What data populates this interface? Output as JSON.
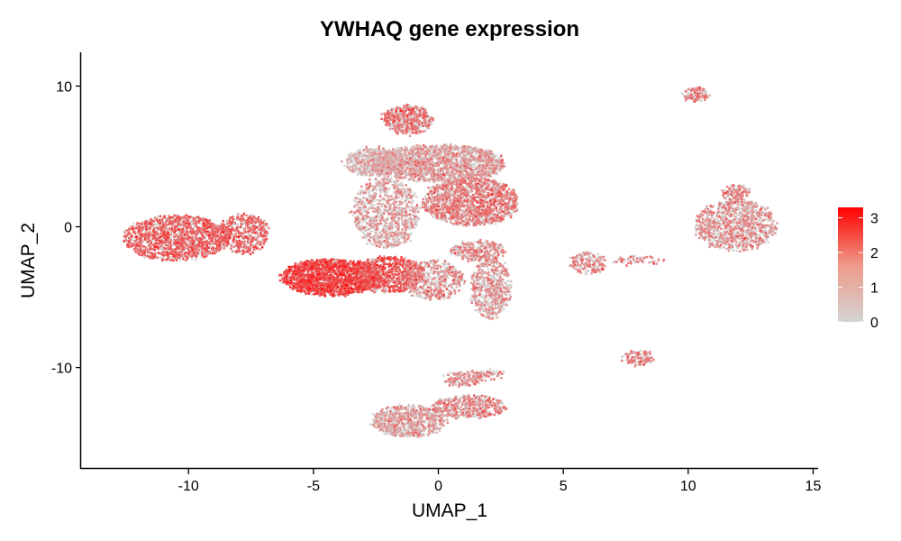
{
  "chart_data": {
    "type": "scatter",
    "title": "YWHAQ gene expression",
    "xlabel": "UMAP_1",
    "ylabel": "UMAP_2",
    "xlim": [
      -14.3,
      15.2
    ],
    "ylim": [
      -17.2,
      12.4
    ],
    "x_ticks": [
      -10,
      -5,
      0,
      5,
      10,
      15
    ],
    "y_ticks": [
      -10,
      0,
      10
    ],
    "x_tick_labels": [
      "-10",
      "-5",
      "0",
      "5",
      "10",
      "15"
    ],
    "y_tick_labels": [
      "-10",
      "0",
      "10"
    ],
    "grid": false,
    "legend_position": "right",
    "color_scale": {
      "min": 0,
      "max": 3.3,
      "low_color": "#d3d3d3",
      "high_color": "#ff0000",
      "ticks": [
        0,
        1,
        2,
        3
      ],
      "tick_labels": [
        "0",
        "1",
        "2",
        "3"
      ]
    },
    "clusters": [
      {
        "cx": -10.5,
        "cy": -0.8,
        "rx": 2.1,
        "ry": 1.6,
        "n": 1400,
        "mean_expr": 1.8
      },
      {
        "cx": -7.8,
        "cy": -0.5,
        "rx": 1.0,
        "ry": 1.4,
        "n": 500,
        "mean_expr": 1.7
      },
      {
        "cx": -4.3,
        "cy": -3.6,
        "rx": 2.0,
        "ry": 1.3,
        "n": 1700,
        "mean_expr": 2.3
      },
      {
        "cx": -2.0,
        "cy": -3.4,
        "rx": 1.4,
        "ry": 1.3,
        "n": 800,
        "mean_expr": 1.9
      },
      {
        "cx": -1.2,
        "cy": 7.6,
        "rx": 1.0,
        "ry": 1.0,
        "n": 500,
        "mean_expr": 1.4
      },
      {
        "cx": -2.6,
        "cy": 4.6,
        "rx": 1.1,
        "ry": 1.0,
        "n": 500,
        "mean_expr": 0.5
      },
      {
        "cx": 0.0,
        "cy": 4.5,
        "rx": 2.7,
        "ry": 1.3,
        "n": 1800,
        "mean_expr": 0.9
      },
      {
        "cx": 1.3,
        "cy": 1.8,
        "rx": 1.9,
        "ry": 1.7,
        "n": 1600,
        "mean_expr": 1.3
      },
      {
        "cx": -2.1,
        "cy": 1.0,
        "rx": 1.3,
        "ry": 2.5,
        "n": 900,
        "mean_expr": 0.9
      },
      {
        "cx": -0.2,
        "cy": -3.8,
        "rx": 1.2,
        "ry": 1.4,
        "n": 500,
        "mean_expr": 1.1
      },
      {
        "cx": 2.1,
        "cy": -4.3,
        "rx": 0.8,
        "ry": 2.2,
        "n": 600,
        "mean_expr": 0.9
      },
      {
        "cx": 1.6,
        "cy": -1.7,
        "rx": 1.1,
        "ry": 0.7,
        "n": 300,
        "mean_expr": 1.2
      },
      {
        "cx": 10.3,
        "cy": 9.4,
        "rx": 0.5,
        "ry": 0.5,
        "n": 120,
        "mean_expr": 1.3
      },
      {
        "cx": 11.9,
        "cy": 0.1,
        "rx": 1.6,
        "ry": 1.8,
        "n": 1000,
        "mean_expr": 1.0
      },
      {
        "cx": 11.9,
        "cy": 2.4,
        "rx": 0.5,
        "ry": 0.6,
        "n": 120,
        "mean_expr": 1.2
      },
      {
        "cx": 8.0,
        "cy": -9.3,
        "rx": 0.6,
        "ry": 0.5,
        "n": 130,
        "mean_expr": 1.3
      },
      {
        "cx": 6.0,
        "cy": -2.6,
        "rx": 0.7,
        "ry": 0.8,
        "n": 180,
        "mean_expr": 1.2
      },
      {
        "cx": 8.0,
        "cy": -2.4,
        "rx": 1.0,
        "ry": 0.3,
        "n": 60,
        "mean_expr": 1.3
      },
      {
        "cx": -1.2,
        "cy": -13.8,
        "rx": 1.5,
        "ry": 1.1,
        "n": 800,
        "mean_expr": 0.9
      },
      {
        "cx": 1.2,
        "cy": -12.8,
        "rx": 1.5,
        "ry": 0.8,
        "n": 500,
        "mean_expr": 1.2
      },
      {
        "cx": 1.0,
        "cy": -10.8,
        "rx": 0.8,
        "ry": 0.5,
        "n": 150,
        "mean_expr": 1.0
      },
      {
        "cx": 2.0,
        "cy": -10.5,
        "rx": 0.7,
        "ry": 0.3,
        "n": 60,
        "mean_expr": 1.0
      }
    ]
  }
}
